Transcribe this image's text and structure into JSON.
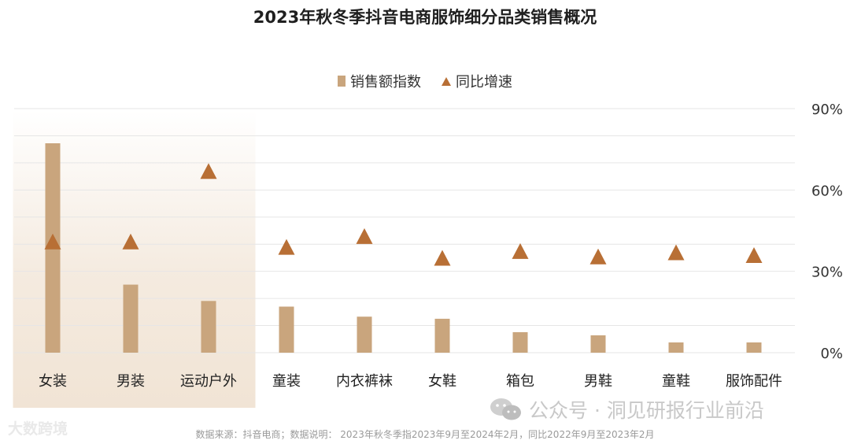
{
  "chart_data": {
    "type": "bar",
    "title": "2023年秋冬季抖音电商服饰细分品类销售概况",
    "categories": [
      "女装",
      "男装",
      "运动户外",
      "童装",
      "内衣裤袜",
      "女鞋",
      "箱包",
      "男鞋",
      "童鞋",
      "服饰配件"
    ],
    "series": [
      {
        "name": "销售额指数",
        "chart": "bar",
        "values": [
          100,
          32.5,
          24.7,
          22,
          17.2,
          16.2,
          9.8,
          8.3,
          4.9,
          4.9
        ]
      },
      {
        "name": "同比增速",
        "chart": "marker",
        "axis": "right",
        "values": [
          41,
          41,
          67,
          39,
          43,
          35,
          37.5,
          35.5,
          37,
          36
        ]
      }
    ],
    "y_right": {
      "ylim": [
        0,
        90
      ],
      "ticks": [
        "90%",
        "60%",
        "30%",
        "0%"
      ]
    },
    "grid": true,
    "legend_position": "top-center",
    "highlight_group": [
      "女装",
      "男装",
      "运动户外"
    ],
    "colors": {
      "bar": "#c9a57d",
      "marker": "#b86f35",
      "highlight": "#f1e4d5",
      "grid": "#e6e6e6"
    }
  },
  "legend": {
    "bar_label": "销售额指数",
    "marker_label": "同比增速"
  },
  "source_note": "数据来源：抖音电商；数据说明：  2023年秋冬季指2023年9月至2024年2月，同比2022年9月至2023年2月",
  "watermarks": {
    "left": "大数跨境",
    "right": "公众号 · 洞见研报行业前沿"
  }
}
